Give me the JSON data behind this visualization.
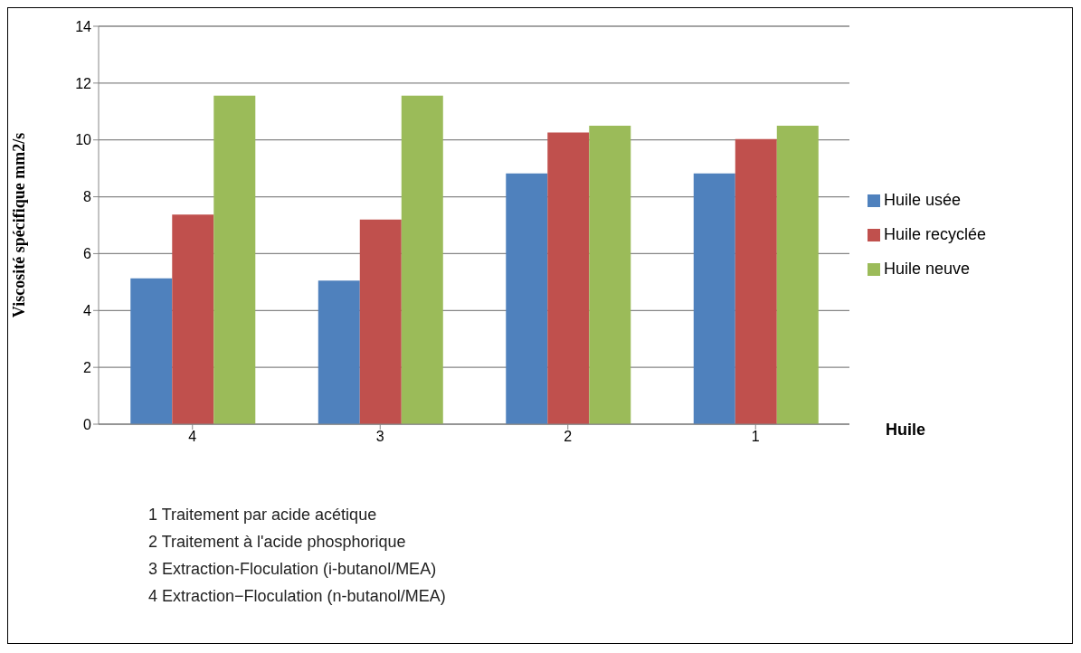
{
  "chart_data": {
    "type": "bar",
    "xlabel": "Huile",
    "ylabel": "Viscosité spécifique  mm2/s",
    "categories": [
      "4",
      "3",
      "2",
      "1"
    ],
    "series": [
      {
        "name": "Huile usée",
        "color": "#4f81bd",
        "values": [
          5.13,
          5.05,
          8.82,
          8.82
        ]
      },
      {
        "name": "Huile recyclée",
        "color": "#c0504d",
        "values": [
          7.37,
          7.2,
          10.26,
          10.03
        ]
      },
      {
        "name": "Huile neuve",
        "color": "#9bbb59",
        "values": [
          11.56,
          11.56,
          10.5,
          10.5
        ]
      }
    ],
    "ylim": [
      0,
      14
    ],
    "yticks": [
      0,
      2,
      4,
      6,
      8,
      10,
      12,
      14
    ],
    "grid": "y",
    "legend": "right",
    "annotations": [
      "1 Traitement par acide acétique",
      "2 Traitement à l'acide phosphorique",
      "3 Extraction-Floculation (i-butanol/MEA)",
      "4 Extraction−Floculation (n-butanol/MEA)"
    ]
  }
}
